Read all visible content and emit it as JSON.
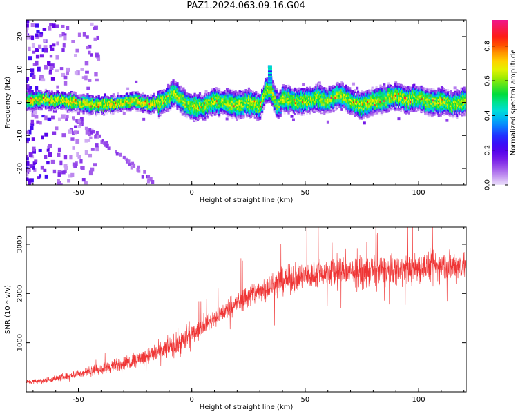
{
  "title": "PAZ1.2024.063.09.16.G04",
  "colors": {
    "snr_line": "#ef3535",
    "axis": "#000000"
  },
  "chart_data": [
    {
      "type": "heatmap",
      "title": "PAZ1.2024.063.09.16.G04",
      "xlabel": "Height of straight line (km)",
      "ylabel": "Frequency (Hz)",
      "xlim": [
        -73,
        121
      ],
      "ylim": [
        -25,
        25
      ],
      "xticks": [
        -50,
        0,
        50,
        100
      ],
      "yticks": [
        -20,
        -10,
        0,
        10,
        20
      ],
      "colorbar": {
        "label": "Normalized spectral amplitude",
        "range": [
          0,
          0.95
        ],
        "ticks": [
          0.0,
          0.2,
          0.4,
          0.6,
          0.8
        ]
      },
      "dominant_frequency_ridge": {
        "x": [
          -73,
          -65,
          -55,
          -45,
          -35,
          -25,
          -18,
          -12,
          -8,
          -5,
          0,
          5,
          10,
          15,
          20,
          25,
          30,
          33,
          35,
          38,
          40,
          45,
          50,
          55,
          60,
          65,
          70,
          75,
          80,
          85,
          90,
          95,
          100,
          105,
          110,
          115,
          120
        ],
        "y": [
          0.5,
          1.0,
          0.5,
          -0.5,
          -0.5,
          0.5,
          -0.5,
          0.5,
          3.0,
          1.0,
          -1.5,
          -1.0,
          0.5,
          0.0,
          -1.0,
          0.0,
          -1.0,
          4.0,
          4.0,
          -1.5,
          1.5,
          0.5,
          0.5,
          1.5,
          0.5,
          2.5,
          0.5,
          -1.0,
          0.5,
          1.0,
          2.0,
          1.0,
          1.5,
          0.0,
          0.5,
          -0.5,
          0.5
        ],
        "peak_amplitude": 0.95
      }
    },
    {
      "type": "line",
      "xlabel": "Height of straight line (km)",
      "ylabel": "SNR (10 * v/v)",
      "xlim": [
        -73,
        121
      ],
      "ylim": [
        0,
        3350
      ],
      "xticks": [
        -50,
        0,
        50,
        100
      ],
      "yticks": [
        1000,
        2000,
        3000
      ],
      "series": [
        {
          "x": [
            -73,
            -65,
            -55,
            -45,
            -35,
            -25,
            -15,
            -10,
            -5,
            0,
            5,
            10,
            15,
            20,
            25,
            30,
            35,
            40,
            45,
            50,
            55,
            60,
            65,
            70,
            75,
            80,
            85,
            90,
            95,
            100,
            105,
            110,
            115,
            120
          ],
          "values": [
            200,
            230,
            320,
            420,
            520,
            650,
            800,
            900,
            1000,
            1150,
            1350,
            1500,
            1650,
            1800,
            1950,
            2050,
            2150,
            2250,
            2300,
            2350,
            2380,
            2420,
            2450,
            2420,
            2400,
            2450,
            2450,
            2500,
            2500,
            2520,
            2550,
            2560,
            2570,
            2580
          ]
        }
      ]
    }
  ]
}
